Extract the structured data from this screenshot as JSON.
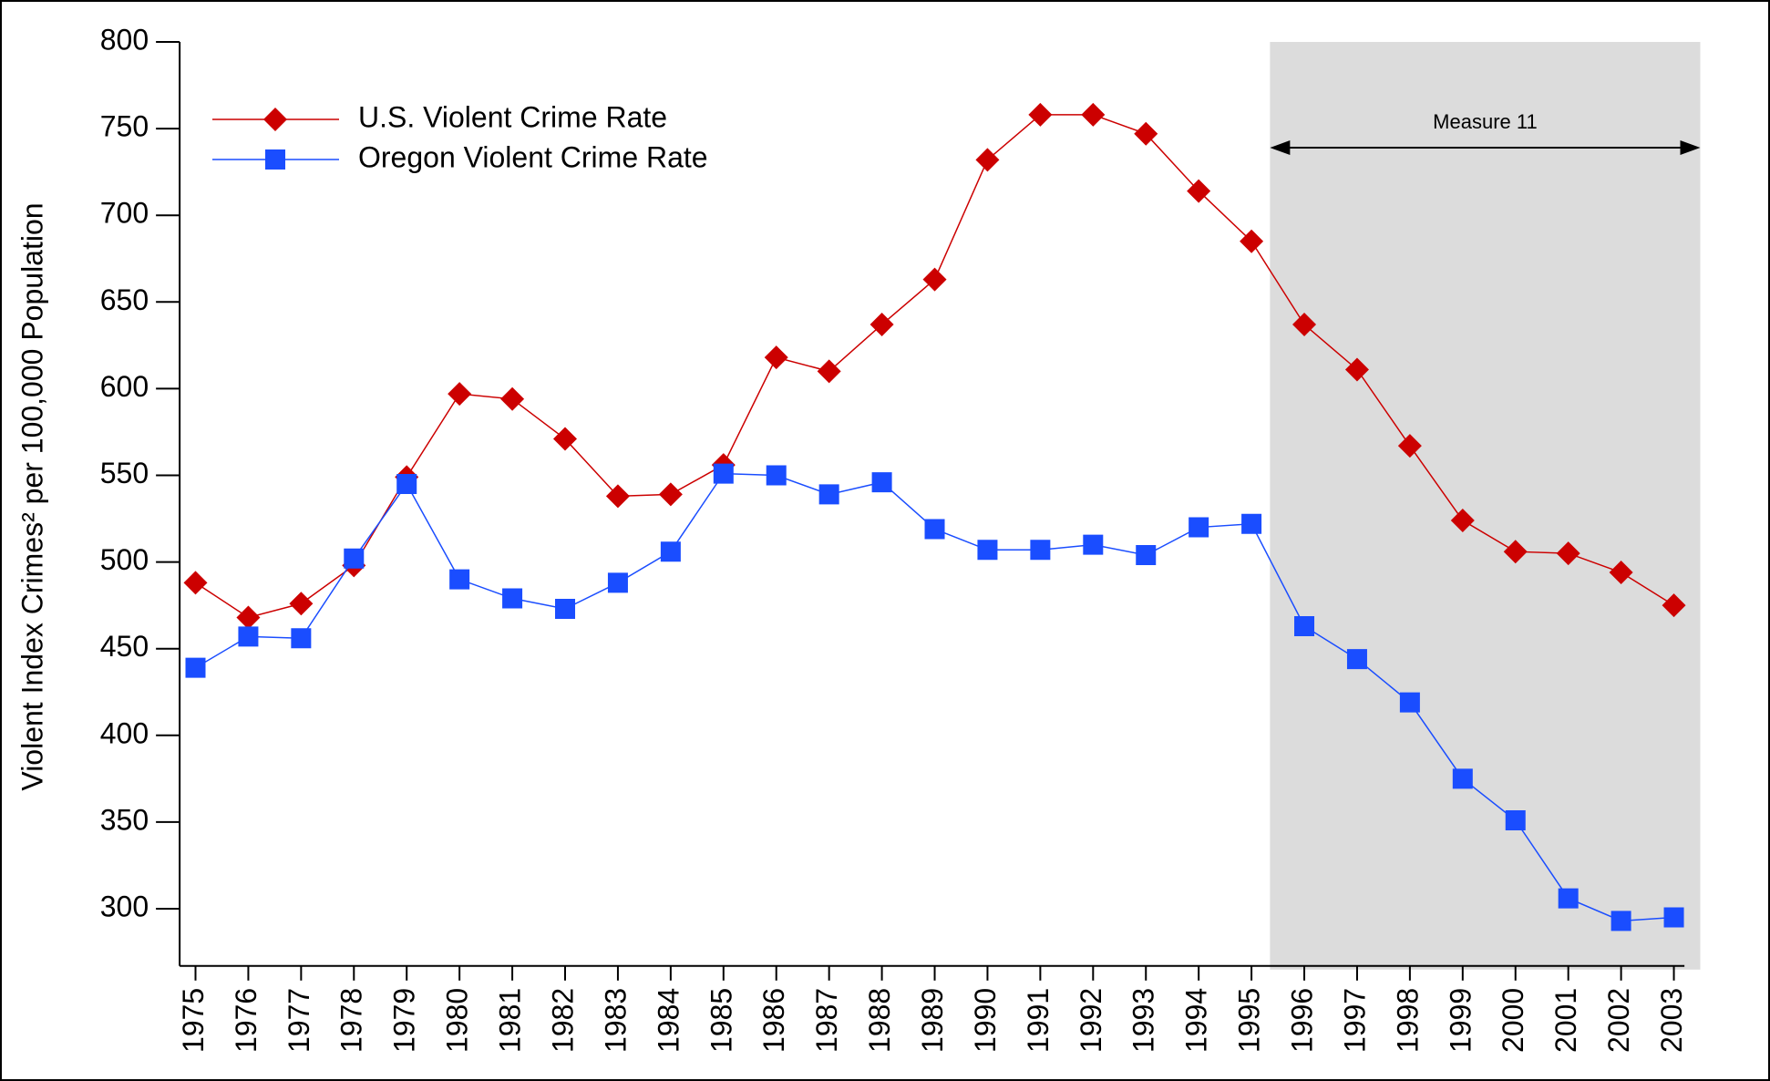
{
  "chart_data": {
    "type": "line",
    "y_label": "Violent Index Crimes² per 100,000 Population",
    "x": [
      1975,
      1976,
      1977,
      1978,
      1979,
      1980,
      1981,
      1982,
      1983,
      1984,
      1985,
      1986,
      1987,
      1988,
      1989,
      1990,
      1991,
      1992,
      1993,
      1994,
      1995,
      1996,
      1997,
      1998,
      1999,
      2000,
      2001,
      2002,
      2003
    ],
    "xlim": [
      1974.7,
      2003.2
    ],
    "ylim": [
      267,
      800
    ],
    "yticks": [
      300,
      350,
      400,
      450,
      500,
      550,
      600,
      650,
      700,
      750,
      800
    ],
    "legend": "upper left",
    "series": [
      {
        "name": "U.S. Violent Crime Rate",
        "color": "#cc0000",
        "marker": "diamond",
        "values": [
          488,
          468,
          476,
          498,
          549,
          597,
          594,
          571,
          538,
          539,
          556,
          618,
          610,
          637,
          663,
          732,
          758,
          758,
          747,
          714,
          685,
          637,
          611,
          567,
          524,
          506,
          505,
          494,
          475
        ]
      },
      {
        "name": "Oregon Violent Crime Rate",
        "color": "#1a4dff",
        "marker": "square",
        "values": [
          439,
          457,
          456,
          502,
          545,
          490,
          479,
          473,
          488,
          506,
          551,
          550,
          539,
          546,
          519,
          507,
          507,
          510,
          504,
          520,
          522,
          463,
          444,
          419,
          375,
          351,
          306,
          293,
          295
        ]
      }
    ],
    "annotation": {
      "text": "Measure 11",
      "x_range": [
        1995.35,
        2003.5
      ],
      "y": 739,
      "shade": "#dcdcdc"
    }
  }
}
